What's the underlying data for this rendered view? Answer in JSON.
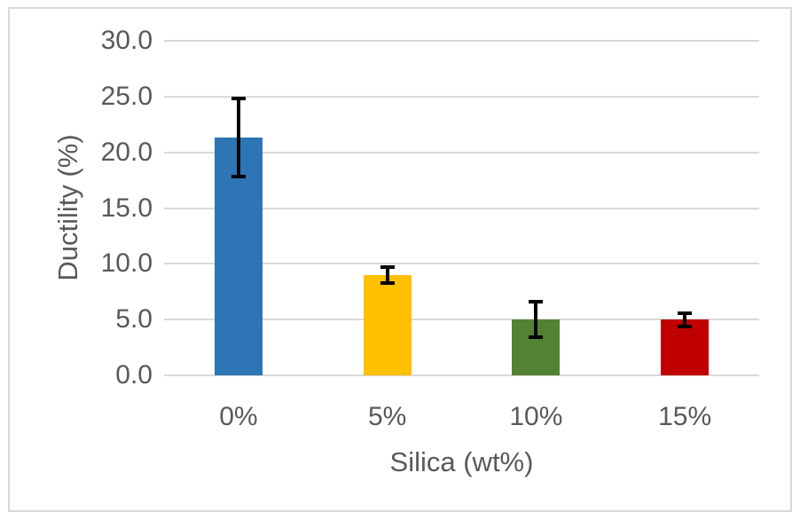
{
  "chart_data": {
    "type": "bar",
    "title": "",
    "xlabel": "Silica (wt%)",
    "ylabel": "Ductility (%)",
    "categories": [
      "0%",
      "5%",
      "10%",
      "15%"
    ],
    "values": [
      21.3,
      9.0,
      5.0,
      5.0
    ],
    "error_low": [
      17.8,
      8.3,
      3.4,
      4.4
    ],
    "error_high": [
      24.8,
      9.7,
      6.6,
      5.6
    ],
    "bar_colors": [
      "#2E75B6",
      "#FFC000",
      "#548235",
      "#C00000"
    ],
    "ylim": [
      0,
      30
    ],
    "ytick_step": 5,
    "ytick_labels": [
      "0.0",
      "5.0",
      "10.0",
      "15.0",
      "20.0",
      "25.0",
      "30.0"
    ],
    "grid": true,
    "legend": "none",
    "gridline_color": "#D9D9D9",
    "axis_line_color": "#D9D9D9",
    "axis_text_color": "#595959",
    "error_bar_color": "#000000",
    "plot_background": "#FFFFFF",
    "frame_border_color": "#D9D9D9"
  }
}
